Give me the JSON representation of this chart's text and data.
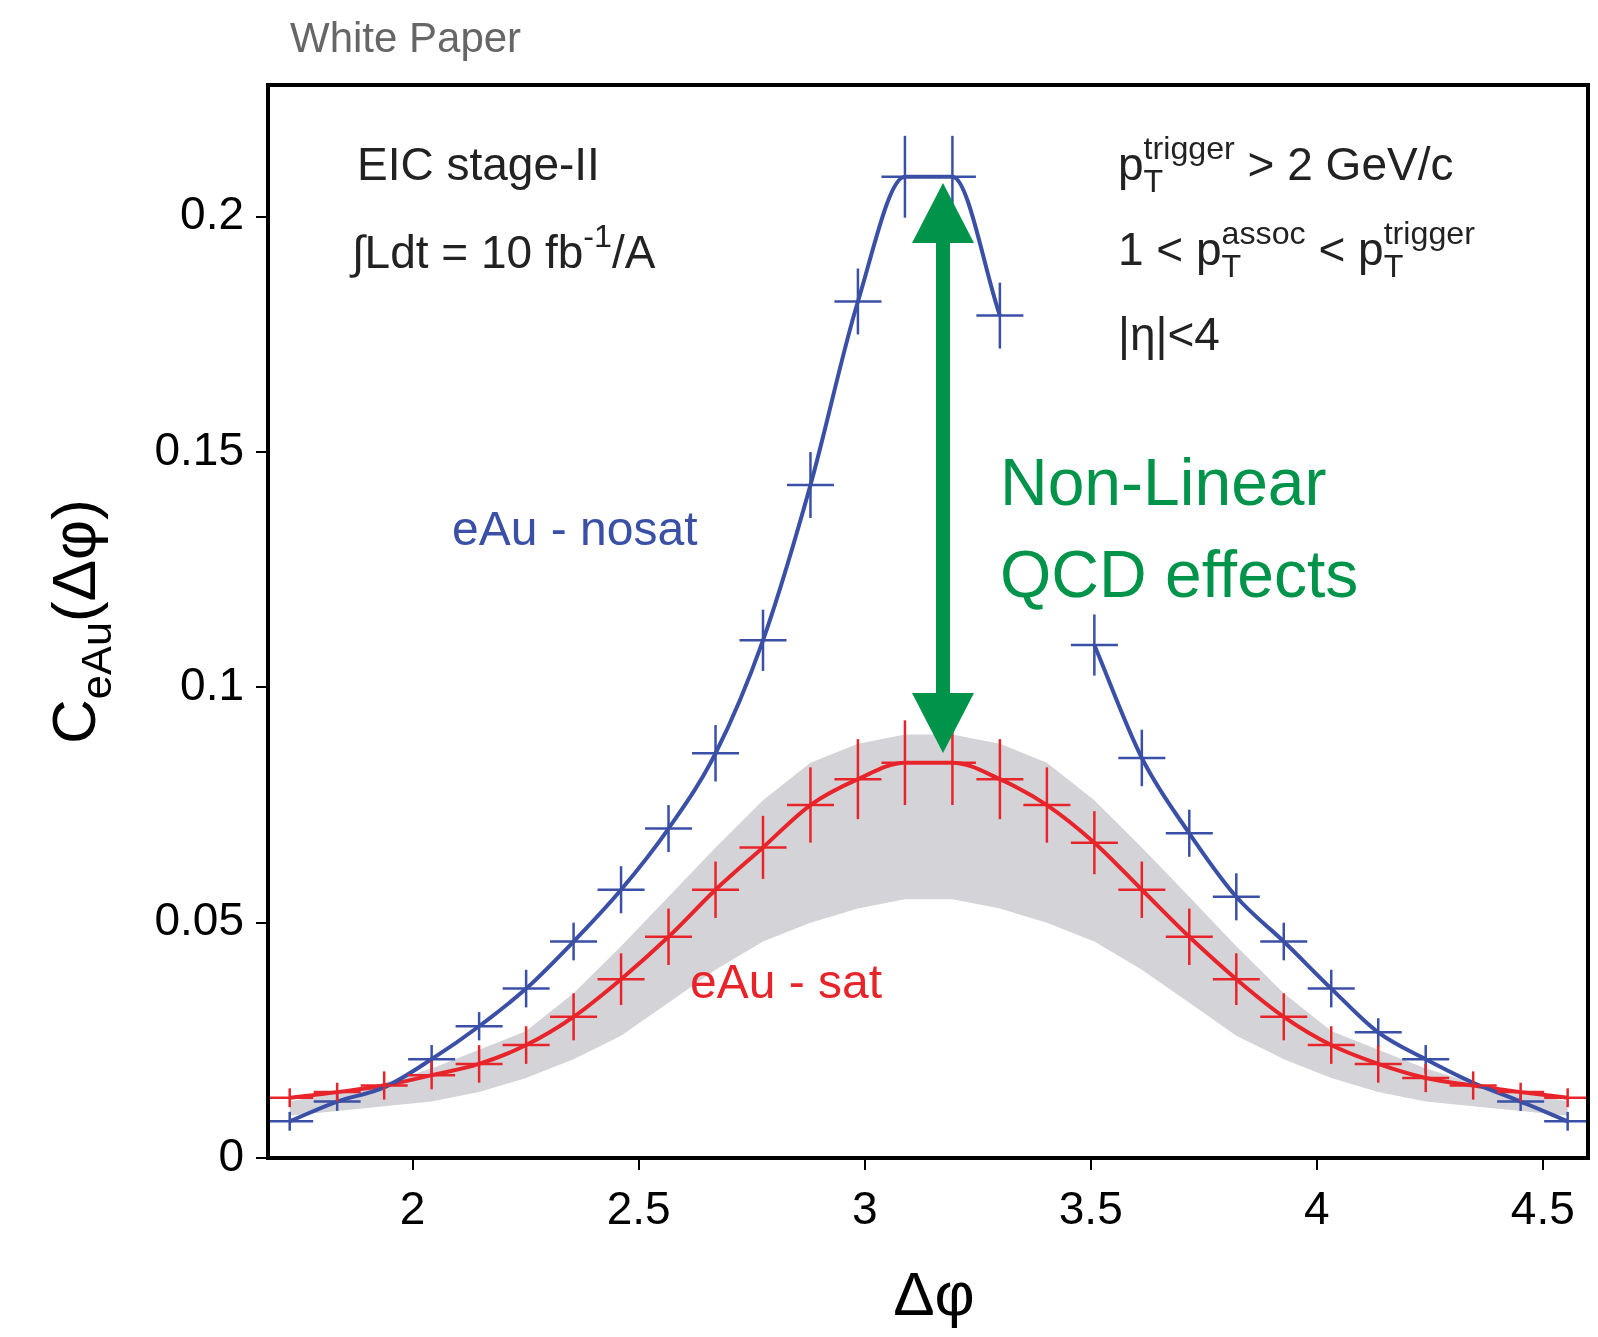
{
  "chart_data": {
    "type": "line",
    "title": "White Paper",
    "xlabel": "Δφ",
    "ylabel": "C$_{eAu}$(Δφ)",
    "x": [
      1.728,
      1.833,
      1.937,
      2.042,
      2.147,
      2.251,
      2.356,
      2.461,
      2.566,
      2.67,
      2.775,
      2.88,
      2.985,
      3.089,
      3.194,
      3.299,
      3.403,
      3.508,
      3.613,
      3.718,
      3.822,
      3.927,
      4.032,
      4.136,
      4.241,
      4.346,
      4.451,
      4.555
    ],
    "series": [
      {
        "name": "eAu - nosat",
        "color": "#3a4fa6",
        "values": [
          0.0078,
          0.012,
          0.015,
          0.021,
          0.028,
          0.036,
          0.046,
          0.057,
          0.07,
          0.086,
          0.11,
          0.143,
          0.182,
          0.2085,
          0.2085,
          0.179,
          null,
          0.109,
          0.085,
          0.069,
          0.0555,
          0.046,
          0.036,
          0.0267,
          0.021,
          0.016,
          0.012,
          0.0078
        ],
        "errors": [
          0.002,
          0.002,
          null,
          0.003,
          0.003,
          0.004,
          0.004,
          0.005,
          0.005,
          0.006,
          0.0065,
          0.007,
          0.007,
          0.0087,
          0.0087,
          0.007,
          null,
          0.0065,
          0.006,
          0.005,
          0.005,
          0.004,
          0.004,
          0.003,
          0.003,
          null,
          0.002,
          0.002
        ],
        "xerrors": [
          0.052,
          0.052,
          null,
          0.052,
          0.052,
          0.052,
          0.052,
          0.052,
          0.052,
          0.052,
          0.052,
          0.052,
          0.052,
          0.052,
          0.052,
          0.052,
          null,
          0.052,
          0.052,
          0.052,
          0.052,
          0.052,
          0.052,
          0.052,
          0.052,
          null,
          0.052,
          0.052
        ]
      },
      {
        "name": "eAu - sat",
        "color": "#e8242b",
        "values": [
          0.0128,
          0.014,
          0.0154,
          0.0176,
          0.02,
          0.024,
          0.03,
          0.038,
          0.047,
          0.057,
          0.066,
          0.075,
          0.0805,
          0.084,
          0.084,
          0.0805,
          0.075,
          0.067,
          0.057,
          0.047,
          0.038,
          0.03,
          0.024,
          0.02,
          0.017,
          0.0154,
          0.014,
          0.0128
        ],
        "errors": [
          0.002,
          0.002,
          0.003,
          0.003,
          0.004,
          0.004,
          0.005,
          0.0055,
          0.006,
          0.006,
          0.0067,
          0.008,
          0.0085,
          0.009,
          0.009,
          0.0085,
          0.008,
          0.0067,
          0.006,
          0.006,
          0.0055,
          0.005,
          0.004,
          0.004,
          0.003,
          0.003,
          0.002,
          0.002
        ],
        "xerrors": [
          0.052,
          0.052,
          0.052,
          0.052,
          0.052,
          0.052,
          0.052,
          0.052,
          0.052,
          0.052,
          0.052,
          0.052,
          0.052,
          0.052,
          0.052,
          0.052,
          0.052,
          0.052,
          0.052,
          0.052,
          0.052,
          0.052,
          0.052,
          0.052,
          0.052,
          0.052,
          0.052,
          0.052
        ],
        "lower": [
          0.009,
          0.01,
          0.011,
          0.012,
          0.014,
          0.017,
          0.021,
          0.026,
          0.033,
          0.04,
          0.046,
          0.05,
          0.053,
          0.055,
          0.055,
          0.053,
          0.05,
          0.046,
          0.04,
          0.033,
          0.026,
          0.021,
          0.017,
          0.014,
          0.012,
          0.011,
          0.01,
          0.009
        ],
        "upper": [
          0.012,
          0.014,
          0.016,
          0.019,
          0.023,
          0.027,
          0.035,
          0.045,
          0.0555,
          0.066,
          0.076,
          0.084,
          0.088,
          0.09,
          0.09,
          0.088,
          0.084,
          0.076,
          0.066,
          0.0555,
          0.045,
          0.035,
          0.027,
          0.023,
          0.019,
          0.016,
          0.014,
          0.012
        ]
      }
    ],
    "xlim": [
      1.68,
      4.6
    ],
    "xticks": [
      2,
      2.5,
      3,
      3.5,
      4,
      4.5
    ],
    "ylim": [
      0,
      0.228
    ],
    "yticks": [
      0,
      0.05,
      0.1,
      0.15,
      0.2
    ],
    "annotations": [
      "EIC stage-II",
      "∫Ldt = 10 fb$^{-1}$/A",
      "p$_{T}$$^{trigger}$ > 2 GeV/c",
      "1 < p$_{T}$$^{assoc}$ < p$_{T}$$^{trigger}$",
      "|η|<4",
      "Non-Linear QCD effects"
    ],
    "legend": false,
    "grid": false,
    "marker": "none",
    "line_style": "solid"
  }
}
